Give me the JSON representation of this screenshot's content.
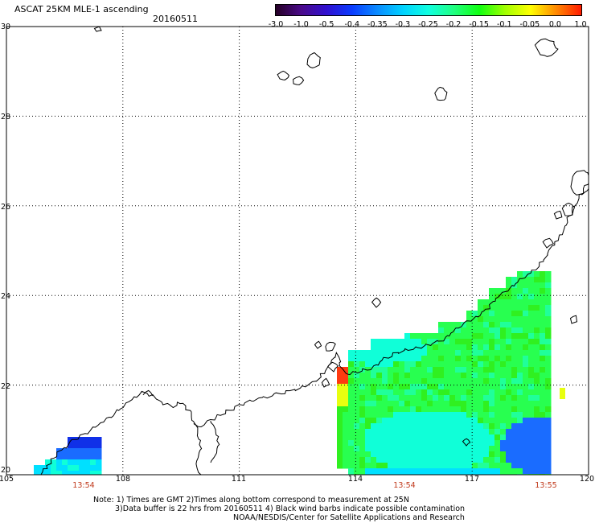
{
  "header": {
    "title": "ASCAT 25KM MLE-1 ascending",
    "date": "20160511"
  },
  "colorbar": {
    "labels": [
      "-3.0",
      "-1.0",
      "-0.5",
      "-0.4",
      "-0.35",
      "-0.3",
      "-0.25",
      "-0.2",
      "-0.15",
      "-0.1",
      "-0.05",
      "0.0",
      "1.0"
    ],
    "colors": [
      "#250025",
      "#4a0a8a",
      "#3010d0",
      "#0a3cff",
      "#0a8cff",
      "#00d2ff",
      "#10ffe0",
      "#20ff80",
      "#10ff10",
      "#a0ff00",
      "#ffff00",
      "#ff8a00",
      "#ff1a00"
    ]
  },
  "map": {
    "lon_range": [
      105,
      120
    ],
    "lat_range": [
      20,
      30
    ],
    "lat_labels": [
      "30",
      "28",
      "26",
      "24",
      "22",
      "20"
    ],
    "lon_labels": [
      "105",
      "108",
      "111",
      "114",
      "117",
      "120"
    ],
    "pass_times": [
      "13:54",
      "13:54",
      "13:55"
    ],
    "colors": {
      "gridline": "#000000",
      "coastline": "#000000",
      "pass_time_text": "#c0391b"
    }
  },
  "notes": {
    "line1": "Note: 1) Times are GMT 2)Times along bottom correspond to measurement at 25N",
    "line2": "3)Data buffer is 22 hrs from 20160511 4) Black wind barbs indicate possible contamination",
    "line3": "NOAA/NESDIS/Center for Satellite Applications and Research"
  }
}
